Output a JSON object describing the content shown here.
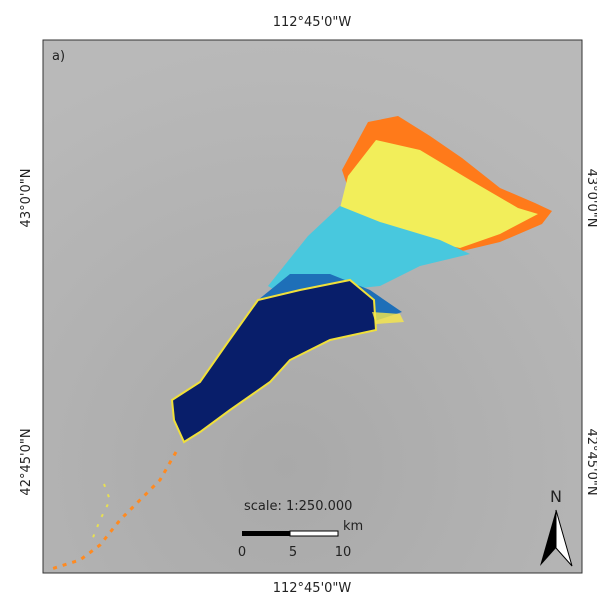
{
  "panel_label": "a)",
  "graticule": {
    "top": "112°45'0\"W",
    "bottom": "112°45'0\"W",
    "left": [
      "43°0'0\"N",
      "42°45'0\"N"
    ],
    "right": [
      "43°0'0\"N",
      "42°45'0\"N"
    ]
  },
  "scale_bar": {
    "title": "scale: 1:250.000",
    "unit": "km",
    "ticks": [
      0,
      5,
      10
    ]
  },
  "north_arrow": "N"
}
